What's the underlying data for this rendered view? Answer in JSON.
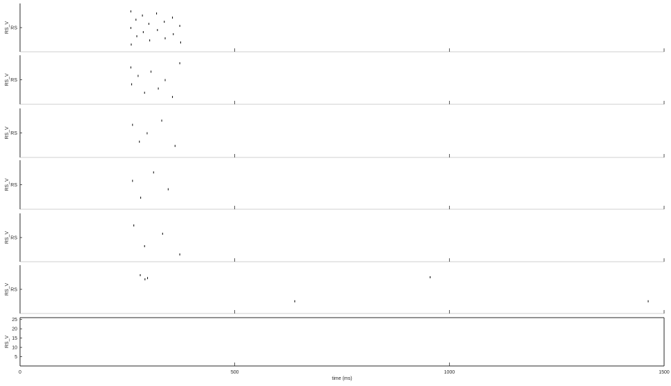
{
  "chart_data": {
    "type": "scatter",
    "xlabel": "time (ms)",
    "xlim": [
      0,
      1500
    ],
    "xticks": [
      0,
      500,
      1000,
      1500
    ],
    "mark_color": "#000000",
    "axis_color": "#262626",
    "panels": [
      {
        "ylabel": "RS_V",
        "ytick_label": "RS",
        "spike_regularity": "dense-rhythmic",
        "events": [
          {
            "t": 258,
            "u": 0.1
          },
          {
            "t": 258,
            "u": 0.5
          },
          {
            "t": 259,
            "u": 0.9
          },
          {
            "t": 270,
            "u": 0.3
          },
          {
            "t": 272,
            "u": 0.7
          },
          {
            "t": 285,
            "u": 0.2
          },
          {
            "t": 287,
            "u": 0.6
          },
          {
            "t": 300,
            "u": 0.4
          },
          {
            "t": 302,
            "u": 0.8
          },
          {
            "t": 318,
            "u": 0.15
          },
          {
            "t": 320,
            "u": 0.55
          },
          {
            "t": 336,
            "u": 0.35
          },
          {
            "t": 338,
            "u": 0.75
          },
          {
            "t": 355,
            "u": 0.25
          },
          {
            "t": 357,
            "u": 0.65
          },
          {
            "t": 372,
            "u": 0.45
          },
          {
            "t": 374,
            "u": 0.85
          }
        ]
      },
      {
        "ylabel": "RS_V",
        "ytick_label": "RS",
        "spike_regularity": "rhythmic",
        "events": [
          {
            "t": 258,
            "u": 0.2
          },
          {
            "t": 260,
            "u": 0.6
          },
          {
            "t": 275,
            "u": 0.4
          },
          {
            "t": 290,
            "u": 0.8
          },
          {
            "t": 305,
            "u": 0.3
          },
          {
            "t": 322,
            "u": 0.7
          },
          {
            "t": 338,
            "u": 0.5
          },
          {
            "t": 355,
            "u": 0.9
          },
          {
            "t": 372,
            "u": 0.1
          }
        ]
      },
      {
        "ylabel": "RS_V",
        "ytick_label": "RS",
        "spike_regularity": "irregular",
        "events": [
          {
            "t": 262,
            "u": 0.3
          },
          {
            "t": 278,
            "u": 0.7
          },
          {
            "t": 296,
            "u": 0.5
          },
          {
            "t": 330,
            "u": 0.2
          },
          {
            "t": 361,
            "u": 0.8
          }
        ]
      },
      {
        "ylabel": "RS_V",
        "ytick_label": "RS",
        "spike_regularity": "sparse",
        "events": [
          {
            "t": 262,
            "u": 0.4
          },
          {
            "t": 281,
            "u": 0.8
          },
          {
            "t": 311,
            "u": 0.2
          },
          {
            "t": 345,
            "u": 0.6
          }
        ]
      },
      {
        "ylabel": "RS_V",
        "ytick_label": "RS",
        "spike_regularity": "very-sparse",
        "events": [
          {
            "t": 265,
            "u": 0.2
          },
          {
            "t": 290,
            "u": 0.7
          },
          {
            "t": 332,
            "u": 0.4
          },
          {
            "t": 372,
            "u": 0.9
          }
        ]
      },
      {
        "ylabel": "RS_V",
        "ytick_label": "RS",
        "spike_regularity": "rare",
        "events": [
          {
            "t": 280,
            "u": 0.15
          },
          {
            "t": 291,
            "u": 0.25
          },
          {
            "t": 297,
            "u": 0.22
          },
          {
            "t": 640,
            "u": 0.78
          },
          {
            "t": 955,
            "u": 0.2
          },
          {
            "t": 1463,
            "u": 0.78
          }
        ]
      },
      {
        "ylabel": "RS_V",
        "ytick_labels": [
          "5",
          "10",
          "15",
          "20",
          "25"
        ],
        "yticks": [
          5,
          10,
          15,
          20,
          25
        ],
        "ylim": [
          0,
          26
        ],
        "events": []
      }
    ]
  }
}
